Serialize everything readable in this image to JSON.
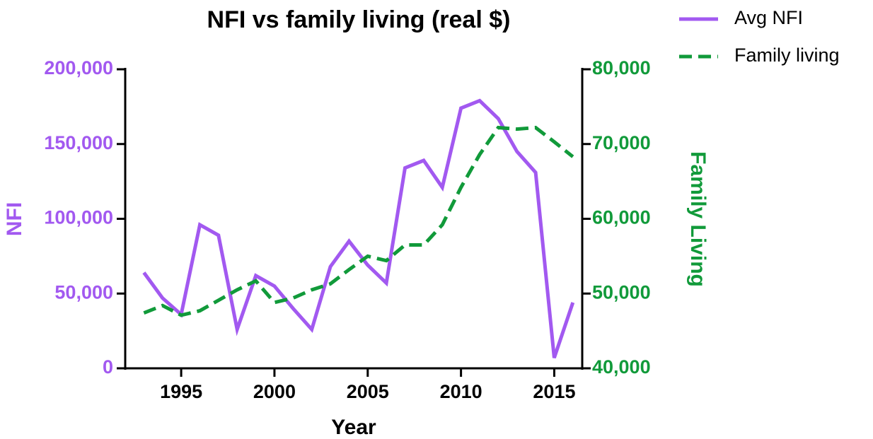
{
  "chart_data": {
    "type": "line",
    "title": "NFI vs family living (real $)",
    "x_label": "Year",
    "y_label": "NFI",
    "y2_label": "Family Living",
    "x": [
      1993,
      1994,
      1995,
      1996,
      1997,
      1998,
      1999,
      2000,
      2001,
      2002,
      2003,
      2004,
      2005,
      2006,
      2007,
      2008,
      2009,
      2010,
      2011,
      2012,
      2013,
      2014,
      2015,
      2016
    ],
    "series": [
      {
        "name": "Avg NFI",
        "color": "#a259f0",
        "dash": "solid",
        "values": [
          64000,
          47000,
          36000,
          96000,
          89000,
          26000,
          62000,
          55000,
          40000,
          26000,
          68000,
          85000,
          69000,
          57000,
          134000,
          139000,
          121000,
          174000,
          179000,
          167000,
          145000,
          131000,
          7000,
          44000
        ]
      },
      {
        "name": "Family living",
        "color": "#119a3a",
        "dash": "dashed",
        "axis": "y2",
        "values": [
          47400,
          48400,
          47100,
          47700,
          49100,
          50500,
          51700,
          48800,
          49400,
          50500,
          51300,
          53200,
          55000,
          54400,
          56500,
          56500,
          59200,
          64200,
          68600,
          72200,
          72000,
          72200,
          70300,
          68300
        ]
      }
    ],
    "xlim": [
      1992,
      2016.5
    ],
    "xticks": [
      1995,
      2000,
      2005,
      2010,
      2015
    ],
    "ylim": [
      0,
      200000
    ],
    "yticks": [
      0,
      {
        "value": 50000,
        "label": "50,000"
      },
      {
        "value": 100000,
        "label": "100,000"
      },
      {
        "value": 150000,
        "label": "150,000"
      },
      {
        "value": 200000,
        "label": "200,000"
      }
    ],
    "y2lim": [
      40000,
      80000
    ],
    "y2ticks": [
      {
        "value": 40000,
        "label": "40,000"
      },
      {
        "value": 50000,
        "label": "50,000"
      },
      {
        "value": 60000,
        "label": "60,000"
      },
      {
        "value": 70000,
        "label": "70,000"
      },
      {
        "value": 80000,
        "label": "80,000"
      }
    ],
    "legend": "upper right",
    "grid": false
  }
}
